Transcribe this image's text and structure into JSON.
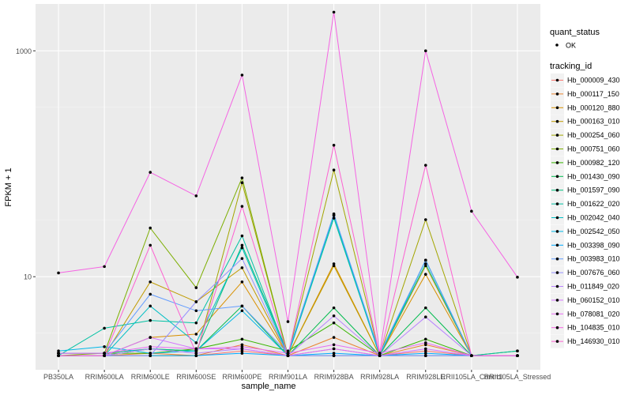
{
  "chart_data": {
    "type": "line",
    "xlabel": "sample_name",
    "ylabel": "FPKM + 1",
    "y_scale": "log10",
    "ylim": [
      1.5,
      2600
    ],
    "y_ticks": [
      {
        "value": 10,
        "label": "10"
      },
      {
        "value": 1000,
        "label": "1000"
      }
    ],
    "categories": [
      "PB350LA",
      "RRIM600LA",
      "RRIM600LE",
      "RRIM600SE",
      "RRIM600PE",
      "RRIM901LA",
      "RRIM928BA",
      "RRIM928LA",
      "RRIM928LE",
      "RRII105LA_Control",
      "RRII105LA_Stressed"
    ],
    "legend_quant": {
      "title": "quant_status",
      "entries": [
        "OK"
      ]
    },
    "legend_title": "tracking_id",
    "grid": true,
    "series": [
      {
        "name": "Hb_000009_430",
        "color": "#F8766D",
        "values": [
          2,
          2,
          2,
          2,
          2.2,
          2,
          2.3,
          2,
          2.2,
          2,
          2
        ]
      },
      {
        "name": "Hb_000117_150",
        "color": "#EA8331",
        "values": [
          2,
          2,
          2.1,
          2,
          2.5,
          2,
          2.9,
          2,
          2.5,
          2,
          2
        ]
      },
      {
        "name": "Hb_000120_880",
        "color": "#D89000",
        "values": [
          2,
          2,
          2.9,
          3.1,
          9,
          2,
          13,
          2,
          10.5,
          2,
          2
        ]
      },
      {
        "name": "Hb_000163_010",
        "color": "#C09B00",
        "values": [
          2,
          2,
          9,
          6,
          12,
          2,
          12.5,
          2,
          12.5,
          2,
          2
        ]
      },
      {
        "name": "Hb_000254_060",
        "color": "#A3A500",
        "values": [
          2,
          2,
          2,
          2,
          68,
          2,
          88,
          2,
          32,
          2,
          2
        ]
      },
      {
        "name": "Hb_000751_060",
        "color": "#7CAE00",
        "values": [
          2,
          2.1,
          27,
          8,
          75,
          2,
          2,
          2,
          2,
          2,
          2
        ]
      },
      {
        "name": "Hb_000982_120",
        "color": "#39B600",
        "values": [
          2.1,
          2.1,
          2.1,
          2.3,
          2.8,
          2.2,
          3.9,
          2,
          2.8,
          2,
          2.2
        ]
      },
      {
        "name": "Hb_001430_090",
        "color": "#00BB4E",
        "values": [
          2,
          2,
          2.3,
          2.2,
          5.5,
          2,
          5.3,
          2,
          5.3,
          2,
          2
        ]
      },
      {
        "name": "Hb_001597_090",
        "color": "#00BF7D",
        "values": [
          2.1,
          2.1,
          2.3,
          2.2,
          19,
          2.1,
          35,
          2,
          14,
          2,
          2
        ]
      },
      {
        "name": "Hb_001622_020",
        "color": "#00C1A3",
        "values": [
          2,
          3.5,
          4.1,
          3.9,
          23,
          2,
          33,
          2,
          13,
          2,
          2.2
        ]
      },
      {
        "name": "Hb_002042_040",
        "color": "#00BFC4",
        "values": [
          2,
          2,
          5.5,
          2.6,
          18,
          2,
          35,
          2,
          14,
          2,
          2
        ]
      },
      {
        "name": "Hb_002542_050",
        "color": "#00B8E7",
        "values": [
          2.2,
          2.4,
          2.1,
          2.2,
          5,
          2,
          2,
          2,
          2,
          2,
          2
        ]
      },
      {
        "name": "Hb_003398_090",
        "color": "#00A9FF",
        "values": [
          2,
          2,
          2,
          2,
          2.1,
          2,
          2.1,
          2,
          2.1,
          2,
          2
        ]
      },
      {
        "name": "Hb_003983_010",
        "color": "#619CFF",
        "values": [
          2.1,
          2.1,
          7,
          5,
          5.5,
          2.1,
          36,
          2.1,
          14,
          2,
          2
        ]
      },
      {
        "name": "Hb_007676_060",
        "color": "#9590FF",
        "values": [
          2,
          2,
          2,
          6,
          14.5,
          2,
          2,
          2,
          2,
          2,
          2
        ]
      },
      {
        "name": "Hb_011849_020",
        "color": "#B983FF",
        "values": [
          2,
          2,
          2.3,
          2.1,
          2.3,
          2,
          4.5,
          2,
          4.4,
          2,
          2
        ]
      },
      {
        "name": "Hb_060152_010",
        "color": "#D575FE",
        "values": [
          2,
          2,
          2.9,
          2.3,
          2.3,
          2,
          2.3,
          2,
          2.3,
          2,
          2
        ]
      },
      {
        "name": "Hb_078081_020",
        "color": "#E76BF3",
        "values": [
          2.1,
          2.1,
          2.4,
          2.3,
          2.4,
          2.1,
          2.5,
          2.1,
          2.6,
          2,
          2
        ]
      },
      {
        "name": "Hb_104835_010",
        "color": "#F564E3",
        "values": [
          10.8,
          12.3,
          84,
          52,
          610,
          4,
          2200,
          2.1,
          1000,
          38,
          9.9
        ]
      },
      {
        "name": "Hb_146930_010",
        "color": "#FD61D1",
        "values": [
          2,
          2,
          19,
          2.1,
          42,
          2,
          146,
          2,
          97,
          2,
          2
        ]
      }
    ]
  }
}
